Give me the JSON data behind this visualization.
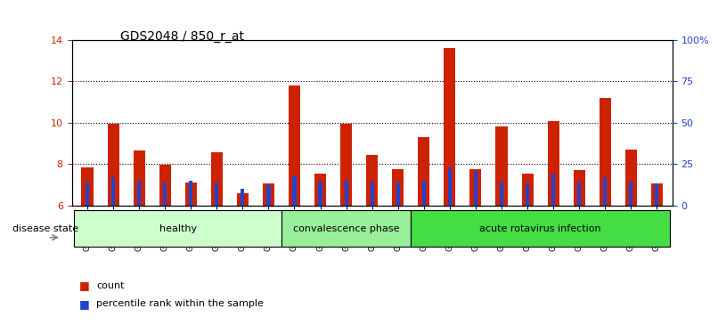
{
  "title": "GDS2048 / 850_r_at",
  "samples": [
    "GSM52859",
    "GSM52860",
    "GSM52861",
    "GSM52862",
    "GSM52863",
    "GSM52864",
    "GSM52865",
    "GSM52866",
    "GSM52877",
    "GSM52878",
    "GSM52879",
    "GSM52880",
    "GSM52881",
    "GSM52867",
    "GSM52868",
    "GSM52869",
    "GSM52870",
    "GSM52871",
    "GSM52872",
    "GSM52873",
    "GSM52874",
    "GSM52875",
    "GSM52876"
  ],
  "count_values": [
    7.85,
    9.95,
    8.65,
    7.95,
    7.1,
    8.55,
    6.6,
    7.05,
    11.8,
    7.55,
    9.95,
    8.45,
    7.75,
    9.3,
    13.6,
    7.75,
    9.8,
    7.55,
    10.05,
    7.7,
    11.2,
    8.7,
    7.05
  ],
  "percentile_values": [
    7.1,
    7.35,
    7.2,
    7.1,
    7.2,
    7.1,
    6.8,
    7.0,
    7.4,
    7.15,
    7.25,
    7.15,
    7.1,
    7.2,
    7.85,
    7.65,
    7.15,
    7.05,
    7.55,
    7.1,
    7.35,
    7.15,
    7.05
  ],
  "groups": [
    {
      "label": "healthy",
      "start": 0,
      "end": 8,
      "color": "#ccffcc"
    },
    {
      "label": "convalescence phase",
      "start": 8,
      "end": 13,
      "color": "#99ee99"
    },
    {
      "label": "acute rotavirus infection",
      "start": 13,
      "end": 23,
      "color": "#44dd44"
    }
  ],
  "ylim_left": [
    6,
    14
  ],
  "ylim_right": [
    0,
    100
  ],
  "yticks_left": [
    6,
    8,
    10,
    12,
    14
  ],
  "yticks_right": [
    0,
    25,
    50,
    75,
    100
  ],
  "ytick_labels_right": [
    "0",
    "25",
    "50",
    "75",
    "100%"
  ],
  "bar_color_count": "#cc2200",
  "bar_color_pct": "#2244cc",
  "bar_width": 0.45,
  "grid_color": "#000000",
  "title_fontsize": 10,
  "tick_label_color_left": "#cc2200",
  "tick_label_color_right": "#2244cc",
  "disease_state_label": "disease state",
  "legend_count": "count",
  "legend_pct": "percentile rank within the sample"
}
